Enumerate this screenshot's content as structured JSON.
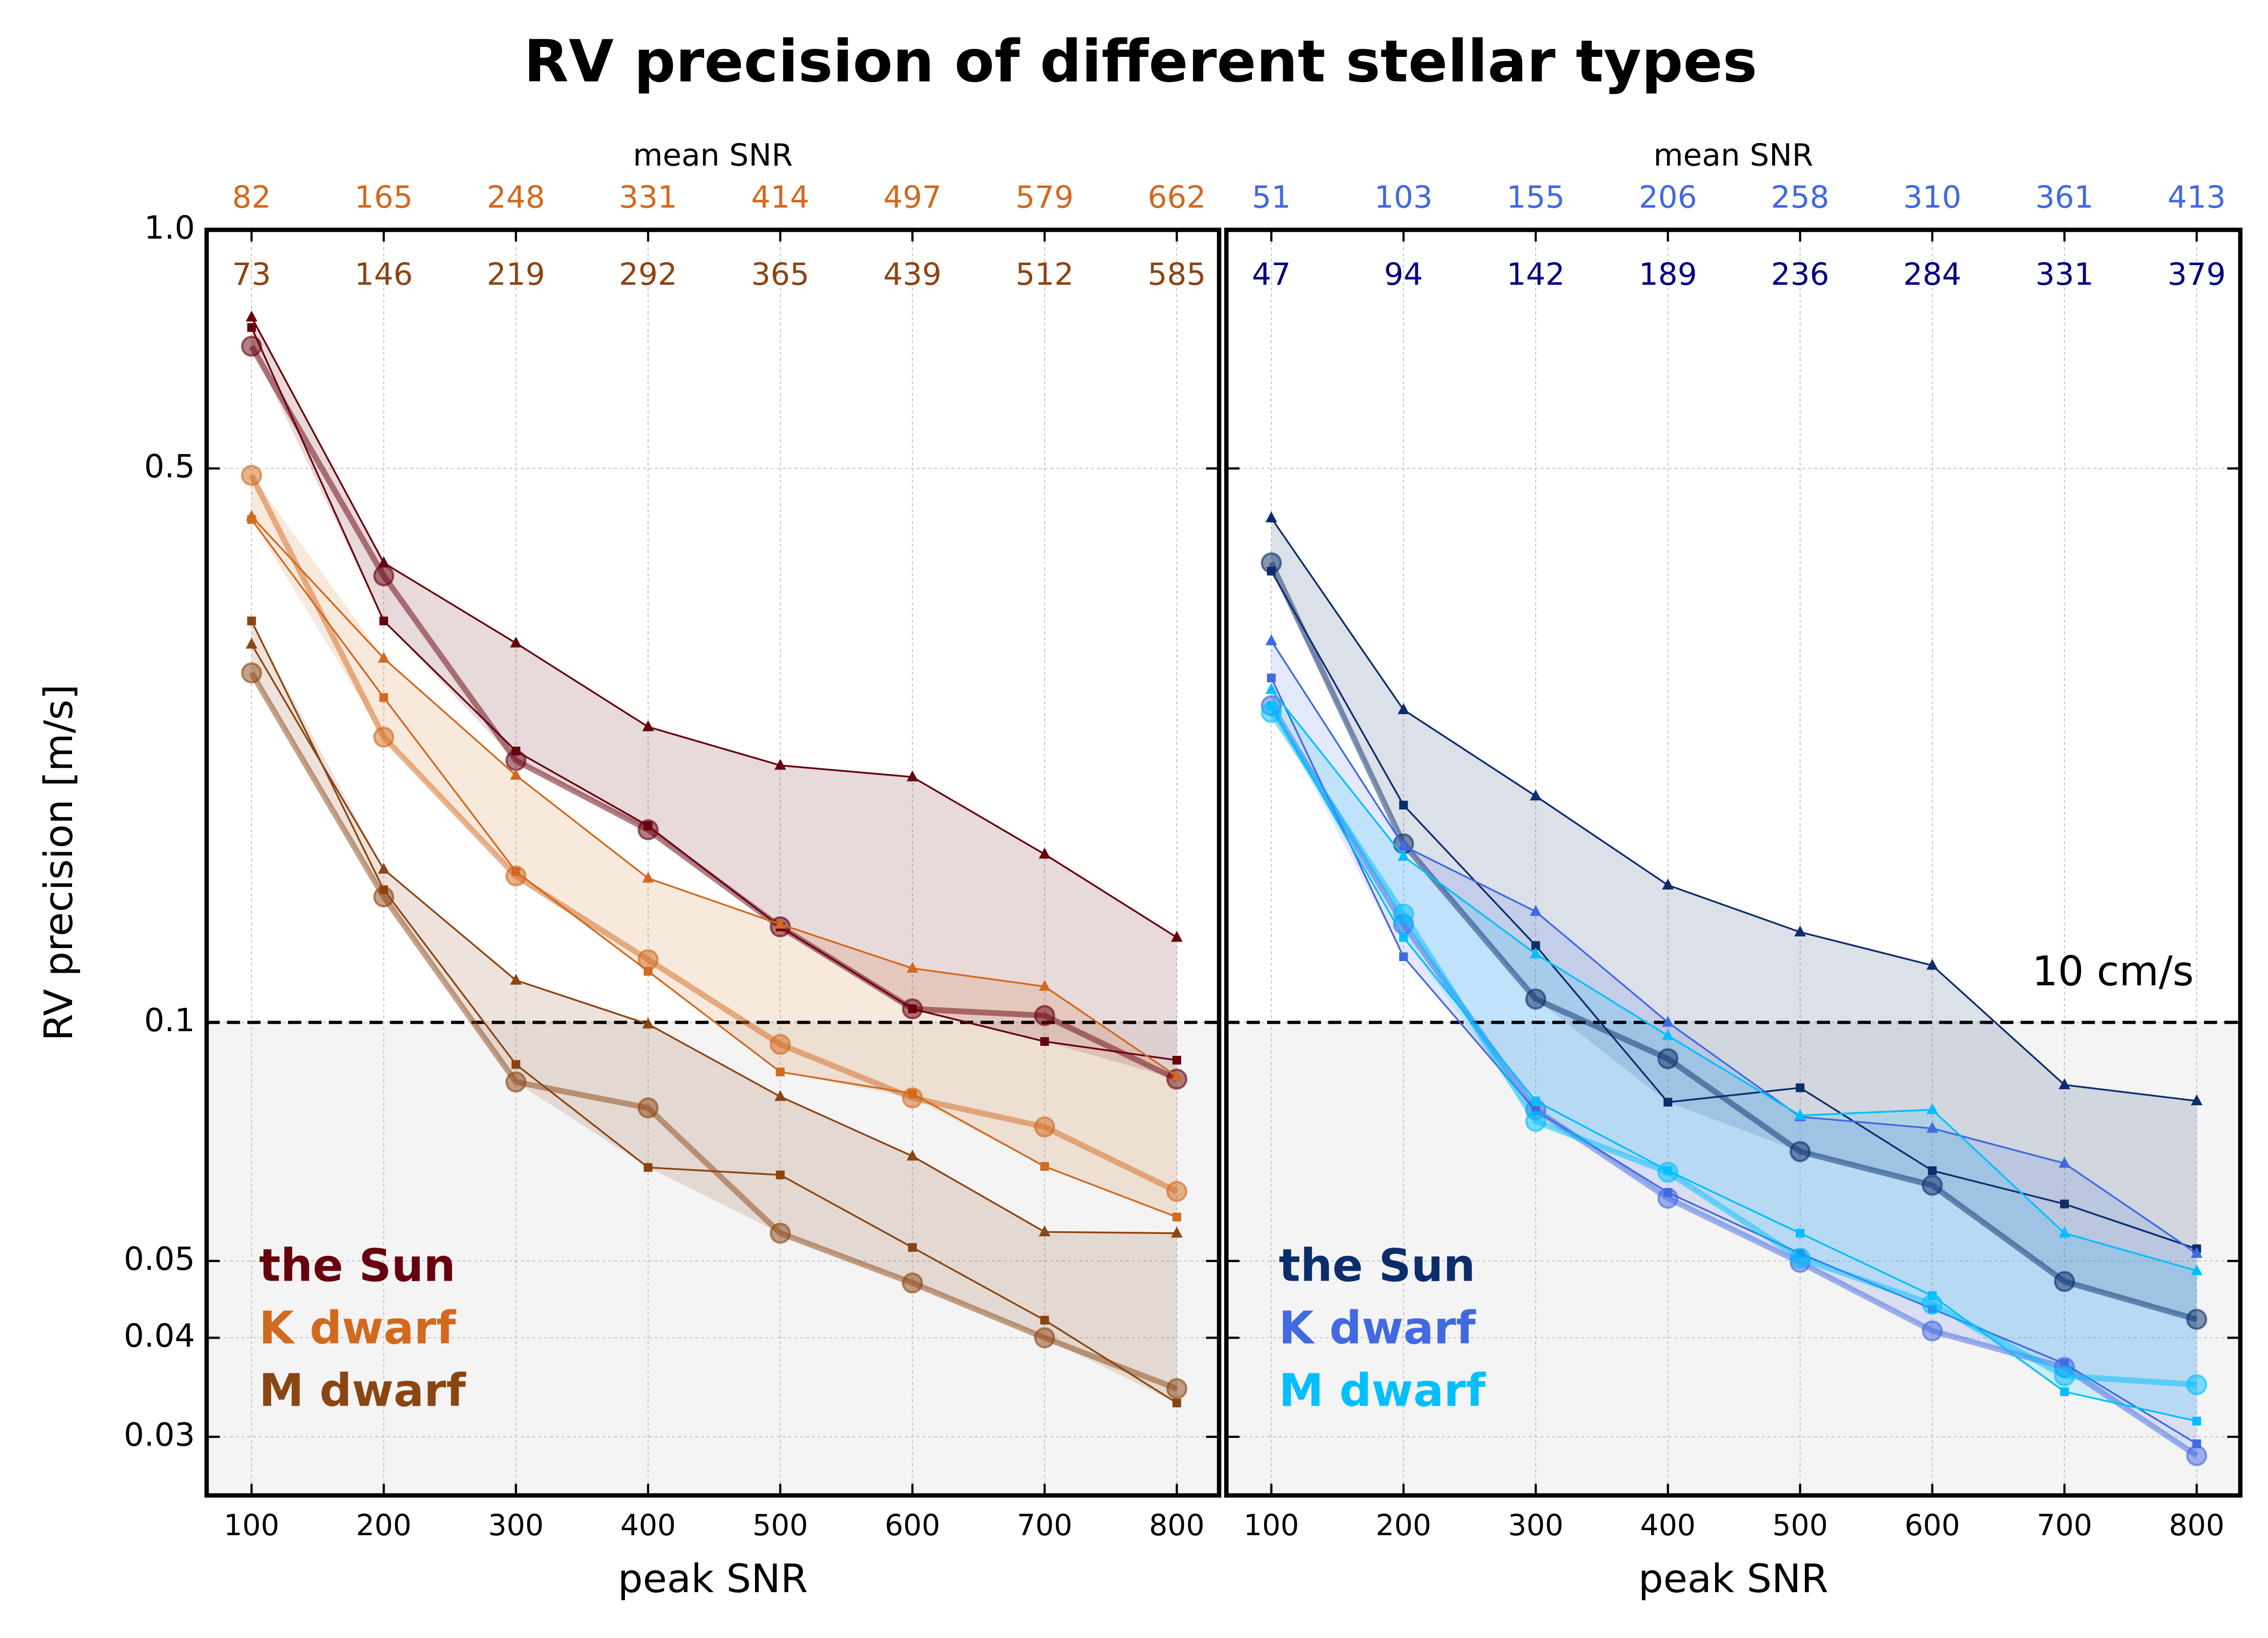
{
  "title": "RV precision of different stellar types",
  "chart_data": [
    {
      "type": "line",
      "xlabel": "peak SNR",
      "ylabel": "RV precision [m/s]",
      "x": [
        100,
        200,
        300,
        400,
        500,
        600,
        700,
        800
      ],
      "xlim": [
        66,
        832
      ],
      "ylim": [
        0.0253,
        1.0
      ],
      "log_y": true,
      "grid": true,
      "xticks": [
        100,
        200,
        300,
        400,
        500,
        600,
        700,
        800
      ],
      "yticks": [
        0.03,
        0.04,
        0.05,
        0.1,
        0.5,
        {
          "value": 1.0,
          "label": "1.0"
        }
      ],
      "top_label": "mean SNR",
      "top_rows": [
        {
          "color": "#d2691e",
          "values": [
            82,
            165,
            248,
            331,
            414,
            497,
            579,
            662
          ]
        },
        {
          "color": "#8b4513",
          "values": [
            73,
            146,
            219,
            292,
            365,
            439,
            512,
            585
          ]
        }
      ],
      "threshold": 0.1,
      "legend": "lower left",
      "stars": [
        {
          "name": "the Sun",
          "color": "#67000d",
          "circle": [
            0.713,
            0.366,
            0.214,
            0.175,
            0.132,
            0.104,
            0.102,
            0.0848
          ],
          "square": [
            0.753,
            0.321,
            0.22,
            0.177,
            0.132,
            0.104,
            0.0946,
            0.0896
          ],
          "triangle": [
            0.776,
            0.38,
            0.301,
            0.236,
            0.211,
            0.204,
            0.163,
            0.128
          ]
        },
        {
          "name": "K dwarf",
          "color": "#d2691e",
          "circle": [
            0.49,
            0.229,
            0.153,
            0.12,
            0.0938,
            0.0803,
            0.0738,
            0.0612
          ],
          "square": [
            0.431,
            0.257,
            0.155,
            0.116,
            0.0866,
            0.0813,
            0.0658,
            0.0568
          ],
          "triangle": [
            0.435,
            0.288,
            0.205,
            0.152,
            0.133,
            0.117,
            0.111,
            0.0855
          ]
        },
        {
          "name": "M dwarf",
          "color": "#8b4513",
          "circle": [
            0.276,
            0.144,
            0.0841,
            0.078,
            0.0542,
            0.0469,
            0.04,
            0.0345
          ],
          "square": [
            0.321,
            0.147,
            0.0885,
            0.0656,
            0.0642,
            0.052,
            0.0421,
            0.0331
          ],
          "triangle": [
            0.3,
            0.156,
            0.113,
            0.0995,
            0.0806,
            0.0678,
            0.0544,
            0.0542
          ]
        }
      ]
    },
    {
      "type": "line",
      "xlabel": "peak SNR",
      "x": [
        100,
        200,
        300,
        400,
        500,
        600,
        700,
        800
      ],
      "xlim": [
        66,
        833
      ],
      "grid": true,
      "xticks": [
        100,
        200,
        300,
        400,
        500,
        600,
        700,
        800
      ],
      "top_label": "mean SNR",
      "top_rows": [
        {
          "color": "#4169e1",
          "values": [
            51,
            103,
            155,
            206,
            258,
            310,
            361,
            413
          ]
        },
        {
          "color": "#000080",
          "values": [
            47,
            94,
            142,
            189,
            236,
            284,
            331,
            379
          ]
        }
      ],
      "threshold": 0.1,
      "threshold_label": "10 cm/s",
      "legend": "lower left",
      "stars": [
        {
          "name": "the Sun",
          "color": "#0b2d6b",
          "circle": [
            0.38,
            0.168,
            0.107,
            0.09,
            0.0687,
            0.0623,
            0.0471,
            0.0422
          ],
          "square": [
            0.371,
            0.188,
            0.125,
            0.0793,
            0.0827,
            0.065,
            0.059,
            0.0518
          ],
          "triangle": [
            0.433,
            0.248,
            0.193,
            0.149,
            0.13,
            0.118,
            0.0834,
            0.0796
          ]
        },
        {
          "name": "K dwarf",
          "color": "#4169e1",
          "circle": [
            0.251,
            0.133,
            0.0776,
            0.06,
            0.0498,
            0.0408,
            0.0367,
            0.0284
          ],
          "square": [
            0.272,
            0.121,
            0.0774,
            0.061,
            0.0511,
            0.0435,
            0.0371,
            0.0294
          ],
          "triangle": [
            0.303,
            0.167,
            0.138,
            0.1,
            0.076,
            0.0735,
            0.0664,
            0.0511
          ]
        },
        {
          "name": "M dwarf",
          "color": "#00bfff",
          "circle": [
            0.246,
            0.137,
            0.075,
            0.0647,
            0.0504,
            0.0441,
            0.0358,
            0.0349
          ],
          "square": [
            0.251,
            0.128,
            0.0796,
            0.065,
            0.0542,
            0.0452,
            0.0342,
            0.0314
          ],
          "triangle": [
            0.263,
            0.162,
            0.122,
            0.0962,
            0.0763,
            0.0776,
            0.0542,
            0.0486
          ]
        }
      ]
    }
  ]
}
